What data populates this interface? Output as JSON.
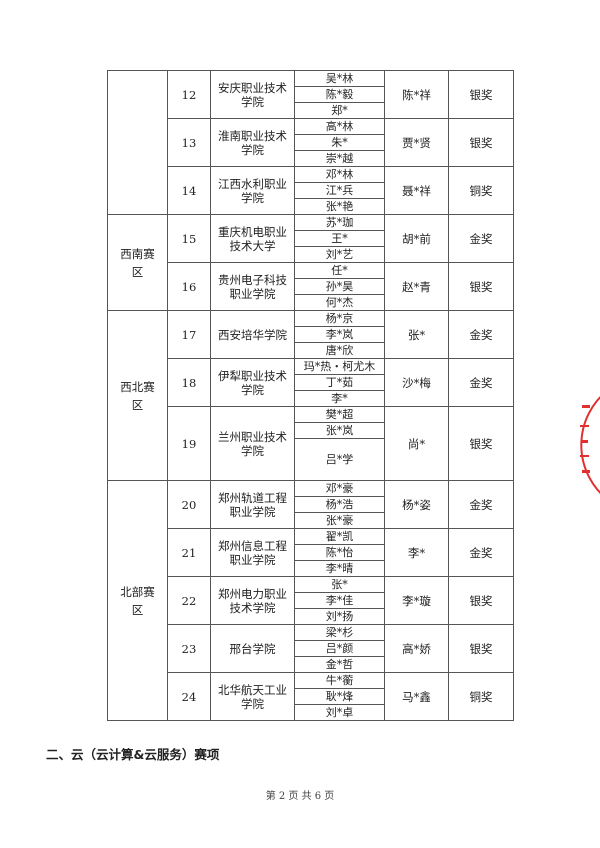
{
  "groups": [
    {
      "region": "",
      "teams": [
        {
          "num": "12",
          "school": "安庆职业技术学院",
          "students": [
            "吴*林",
            "陈*毅",
            "郑*"
          ],
          "teacher": "陈*祥",
          "award": "银奖"
        },
        {
          "num": "13",
          "school": "淮南职业技术学院",
          "students": [
            "高*林",
            "朱*",
            "崇*越"
          ],
          "teacher": "贾*贤",
          "award": "银奖"
        },
        {
          "num": "14",
          "school": "江西水利职业学院",
          "students": [
            "邓*林",
            "江*兵",
            "张*艳"
          ],
          "teacher": "聂*祥",
          "award": "铜奖"
        }
      ]
    },
    {
      "region": "西南赛区",
      "teams": [
        {
          "num": "15",
          "school": "重庆机电职业技术大学",
          "students": [
            "苏*珈",
            "王*",
            "刘*艺"
          ],
          "teacher": "胡*前",
          "award": "金奖"
        },
        {
          "num": "16",
          "school": "贵州电子科技职业学院",
          "students": [
            "任*",
            "孙*昊",
            "何*杰"
          ],
          "teacher": "赵*青",
          "award": "银奖"
        }
      ]
    },
    {
      "region": "西北赛区",
      "teams": [
        {
          "num": "17",
          "school": "西安培华学院",
          "students": [
            "杨*京",
            "李*岚",
            "唐*欣"
          ],
          "teacher": "张*",
          "award": "金奖"
        },
        {
          "num": "18",
          "school": "伊犁职业技术学院",
          "students": [
            "玛*热・柯尤木",
            "丁*茹",
            "李*"
          ],
          "teacher": "沙*梅",
          "award": "金奖"
        },
        {
          "num": "19",
          "school": "兰州职业技术学院",
          "students": [
            "樊*超",
            "张*岚",
            "吕*学"
          ],
          "teacher": "尚*",
          "award": "银奖"
        }
      ]
    },
    {
      "region": "北部赛区",
      "teams": [
        {
          "num": "20",
          "school": "郑州轨道工程职业学院",
          "students": [
            "邓*豪",
            "杨*浩",
            "张*豪"
          ],
          "teacher": "杨*姿",
          "award": "金奖"
        },
        {
          "num": "21",
          "school": "郑州信息工程职业学院",
          "students": [
            "翟*凯",
            "陈*怡",
            "李*晴"
          ],
          "teacher": "李*",
          "award": "金奖"
        },
        {
          "num": "22",
          "school": "郑州电力职业技术学院",
          "students": [
            "张*",
            "李*佳",
            "刘*扬"
          ],
          "teacher": "李*璇",
          "award": "银奖"
        },
        {
          "num": "23",
          "school": "邢台学院",
          "students": [
            "梁*杉",
            "吕*颜",
            "金*哲"
          ],
          "teacher": "高*娇",
          "award": "银奖"
        },
        {
          "num": "24",
          "school": "北华航天工业学院",
          "students": [
            "牛*蘅",
            "耿*烽",
            "刘*卓"
          ],
          "teacher": "马*鑫",
          "award": "铜奖"
        }
      ]
    }
  ],
  "section_heading": "二、云（云计算&云服务）赛项",
  "footer": {
    "page_label": "第 2 页 共 6 页"
  },
  "colors": {
    "stamp": "#e03030",
    "border": "#555555"
  }
}
